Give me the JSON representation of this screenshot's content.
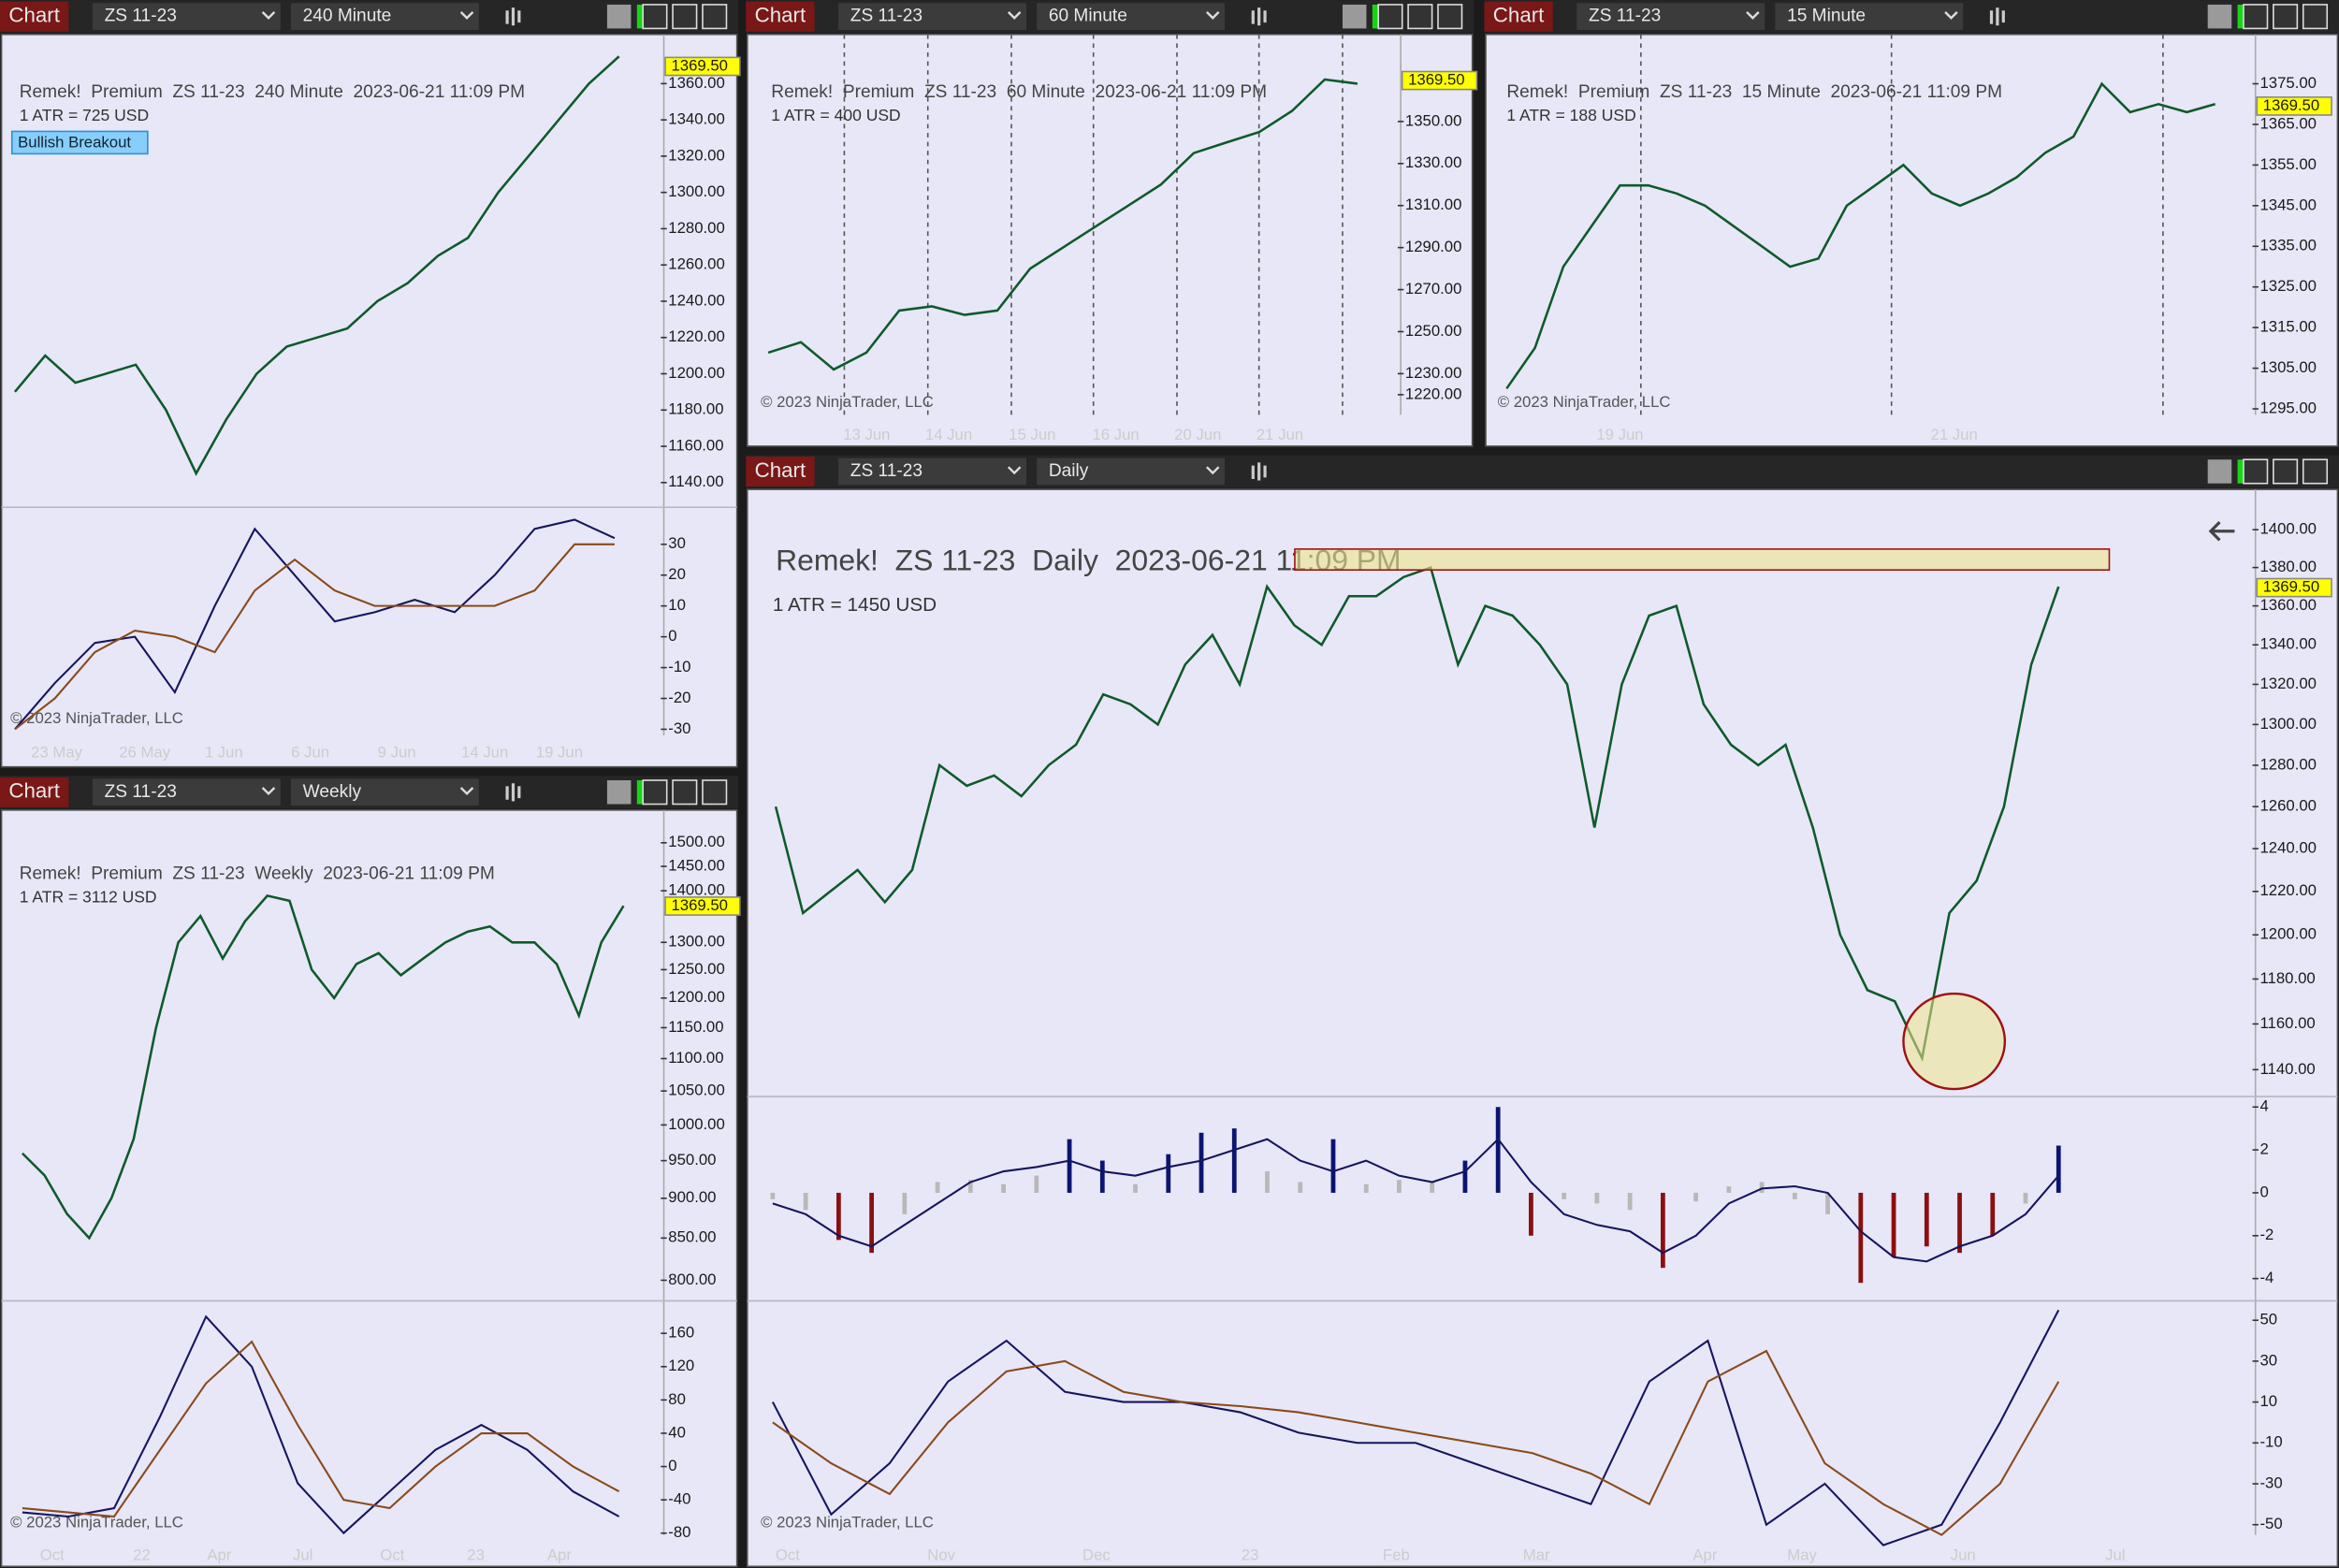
{
  "windows": [
    {
      "header": {
        "button": "Chart",
        "instrument": "ZS 11-23",
        "interval": "240 Minute"
      },
      "chart": {
        "type": "price",
        "title": "Remek!  Premium  ZS 11-23  240 Minute  2023-06-21 11:09 PM",
        "atr": "1 ATR = 725 USD",
        "badge": "Bullish Breakout",
        "last_price": {
          "value": 1369.5,
          "label": "1369.50"
        },
        "copyright": "© 2023 NinjaTrader, LLC",
        "log_scale": false,
        "ylim": [
          1128,
          1383
        ],
        "yticks": [
          {
            "value": 1140,
            "label": "1140.00"
          },
          {
            "value": 1160,
            "label": "1160.00"
          },
          {
            "value": 1180,
            "label": "1180.00"
          },
          {
            "value": 1200,
            "label": "1200.00"
          },
          {
            "value": 1220,
            "label": "1220.00"
          },
          {
            "value": 1240,
            "label": "1240.00"
          },
          {
            "value": 1260,
            "label": "1260.00"
          },
          {
            "value": 1280,
            "label": "1280.00"
          },
          {
            "value": 1300,
            "label": "1300.00"
          },
          {
            "value": 1320,
            "label": "1320.00"
          },
          {
            "value": 1340,
            "label": "1340.00"
          },
          {
            "value": 1360,
            "label": "1360.00"
          }
        ],
        "xticks": [
          "23 May",
          "26 May",
          "1 Jun",
          "6 Jun",
          "9 Jun",
          "14 Jun",
          "19 Jun"
        ],
        "price": {
          "color": "#0e5a2a",
          "values": [
            1190,
            1210,
            1195,
            1200,
            1205,
            1180,
            1145,
            1175,
            1200,
            1215,
            1220,
            1225,
            1240,
            1250,
            1265,
            1275,
            1300,
            1320,
            1340,
            1360,
            1375
          ]
        },
        "osc": {
          "ylim": [
            -33,
            42
          ],
          "yticks": [
            30,
            20,
            10,
            0,
            -10,
            -20,
            -30
          ],
          "series": [
            {
              "color": "#15155e",
              "values": [
                -30,
                -15,
                -2,
                0,
                -18,
                10,
                35,
                20,
                5,
                8,
                12,
                8,
                20,
                35,
                38,
                32
              ]
            },
            {
              "color": "#8a4a1c",
              "values": [
                -30,
                -20,
                -5,
                2,
                0,
                -5,
                15,
                25,
                15,
                10,
                10,
                10,
                10,
                15,
                30,
                30
              ]
            }
          ]
        }
      }
    },
    {
      "header": {
        "button": "Chart",
        "instrument": "ZS 11-23",
        "interval": "60 Minute"
      },
      "chart": {
        "type": "price",
        "title": "Remek!  Premium  ZS 11-23  60 Minute  2023-06-21 11:09 PM",
        "atr": "1 ATR = 400 USD",
        "last_price": {
          "value": 1369.5,
          "label": "1369.50"
        },
        "copyright": "© 2023 NinjaTrader, LLC",
        "log_scale": false,
        "ylim": [
          1209,
          1390
        ],
        "yticks": [
          {
            "value": 1220,
            "label": "1220.00"
          },
          {
            "value": 1230,
            "label": "1230.00"
          },
          {
            "value": 1250,
            "label": "1250.00"
          },
          {
            "value": 1270,
            "label": "1270.00"
          },
          {
            "value": 1290,
            "label": "1290.00"
          },
          {
            "value": 1310,
            "label": "1310.00"
          },
          {
            "value": 1330,
            "label": "1330.00"
          },
          {
            "value": 1350,
            "label": "1350.00"
          }
        ],
        "xticks": [
          "13 Jun",
          "14 Jun",
          "15 Jun",
          "16 Jun",
          "20 Jun",
          "21 Jun"
        ],
        "price": {
          "color": "#0e5a2a",
          "values": [
            1240,
            1245,
            1232,
            1240,
            1260,
            1262,
            1258,
            1260,
            1280,
            1290,
            1300,
            1310,
            1320,
            1335,
            1340,
            1345,
            1355,
            1370,
            1368
          ]
        }
      }
    },
    {
      "header": {
        "button": "Chart",
        "instrument": "ZS 11-23",
        "interval": "15 Minute"
      },
      "chart": {
        "type": "price",
        "title": "Remek!  Premium  ZS 11-23  15 Minute  2023-06-21 11:09 PM",
        "atr": "1 ATR = 188 USD",
        "last_price": {
          "value": 1369.5,
          "label": "1369.50"
        },
        "copyright": "© 2023 NinjaTrader, LLC",
        "log_scale": false,
        "ylim": [
          1292.8,
          1386.4
        ],
        "yticks": [
          {
            "value": 1295,
            "label": "1295.00"
          },
          {
            "value": 1305,
            "label": "1305.00"
          },
          {
            "value": 1315,
            "label": "1315.00"
          },
          {
            "value": 1325,
            "label": "1325.00"
          },
          {
            "value": 1335,
            "label": "1335.00"
          },
          {
            "value": 1345,
            "label": "1345.00"
          },
          {
            "value": 1355,
            "label": "1355.00"
          },
          {
            "value": 1365,
            "label": "1365.00"
          },
          {
            "value": 1375,
            "label": "1375.00"
          }
        ],
        "xticks": [
          "19 Jun",
          "21 Jun"
        ],
        "price": {
          "color": "#0e5a2a",
          "values": [
            1300,
            1310,
            1330,
            1340,
            1350,
            1350,
            1348,
            1345,
            1340,
            1335,
            1330,
            1332,
            1345,
            1350,
            1355,
            1348,
            1345,
            1348,
            1352,
            1358,
            1362,
            1375,
            1368,
            1370,
            1368,
            1370
          ]
        }
      }
    },
    {
      "header": {
        "button": "Chart",
        "instrument": "ZS 11-23",
        "interval": "Weekly"
      },
      "chart": {
        "type": "price",
        "title": "Remek!  Premium  ZS 11-23  Weekly  2023-06-21 11:09 PM",
        "atr": "1 ATR = 3112 USD",
        "last_price": {
          "value": 1369.5,
          "label": "1369.50"
        },
        "copyright": "© 2023 NinjaTrader, LLC",
        "log_scale": true,
        "ylim": [
          780,
          1542
        ],
        "yticks": [
          {
            "value": 800,
            "label": "800.00"
          },
          {
            "value": 850,
            "label": "850.00"
          },
          {
            "value": 900,
            "label": "900.00"
          },
          {
            "value": 950,
            "label": "950.00"
          },
          {
            "value": 1000,
            "label": "1000.00"
          },
          {
            "value": 1050,
            "label": "1050.00"
          },
          {
            "value": 1100,
            "label": "1100.00"
          },
          {
            "value": 1150,
            "label": "1150.00"
          },
          {
            "value": 1200,
            "label": "1200.00"
          },
          {
            "value": 1250,
            "label": "1250.00"
          },
          {
            "value": 1300,
            "label": "1300.00"
          },
          {
            "value": 1400,
            "label": "1400.00"
          },
          {
            "value": 1450,
            "label": "1450.00"
          },
          {
            "value": 1500,
            "label": "1500.00"
          }
        ],
        "xticks": [
          "Oct",
          "22",
          "Apr",
          "Jul",
          "Oct",
          "23",
          "Apr"
        ],
        "price": {
          "color": "#0e5a2a",
          "values": [
            960,
            930,
            880,
            850,
            900,
            980,
            1150,
            1300,
            1350,
            1270,
            1340,
            1390,
            1380,
            1250,
            1200,
            1260,
            1280,
            1240,
            1270,
            1300,
            1320,
            1330,
            1300,
            1300,
            1260,
            1170,
            1300,
            1370
          ]
        },
        "osc": {
          "ylim": [
            -93,
            199
          ],
          "yticks": [
            160,
            120,
            80,
            40,
            0,
            -40,
            -80
          ],
          "series": [
            {
              "color": "#15155e",
              "values": [
                -55,
                -60,
                -50,
                60,
                180,
                120,
                -20,
                -80,
                -30,
                20,
                50,
                20,
                -30,
                -60
              ]
            },
            {
              "color": "#8a4a1c",
              "values": [
                -50,
                -55,
                -60,
                20,
                100,
                150,
                50,
                -40,
                -50,
                0,
                40,
                40,
                0,
                -30
              ]
            }
          ]
        }
      }
    },
    {
      "header": {
        "button": "Chart",
        "instrument": "ZS 11-23",
        "interval": "Daily"
      },
      "chart": {
        "type": "price",
        "title": "Remek!  ZS 11-23  Daily  2023-06-21 11:09 PM",
        "atr": "1 ATR = 1450 USD",
        "last_price": {
          "value": 1369.5,
          "label": "1369.50"
        },
        "copyright": "© 2023 NinjaTrader, LLC",
        "log_scale": true,
        "ylim": [
          1129.7,
          1414.4
        ],
        "yticks": [
          {
            "value": 1140,
            "label": "1140.00"
          },
          {
            "value": 1160,
            "label": "1160.00"
          },
          {
            "value": 1180,
            "label": "1180.00"
          },
          {
            "value": 1200,
            "label": "1200.00"
          },
          {
            "value": 1220,
            "label": "1220.00"
          },
          {
            "value": 1240,
            "label": "1240.00"
          },
          {
            "value": 1260,
            "label": "1260.00"
          },
          {
            "value": 1280,
            "label": "1280.00"
          },
          {
            "value": 1300,
            "label": "1300.00"
          },
          {
            "value": 1320,
            "label": "1320.00"
          },
          {
            "value": 1340,
            "label": "1340.00"
          },
          {
            "value": 1360,
            "label": "1360.00"
          },
          {
            "value": 1380,
            "label": "1380.00"
          },
          {
            "value": 1400,
            "label": "1400.00"
          }
        ],
        "xticks": [
          "Oct",
          "Nov",
          "Dec",
          "23",
          "Feb",
          "Mar",
          "Apr",
          "May",
          "Jun",
          "Jul"
        ],
        "price": {
          "color": "#0e5a2a",
          "values": [
            1260,
            1210,
            1220,
            1230,
            1215,
            1230,
            1280,
            1270,
            1275,
            1265,
            1280,
            1290,
            1315,
            1310,
            1300,
            1330,
            1345,
            1320,
            1370,
            1350,
            1340,
            1365,
            1365,
            1375,
            1380,
            1330,
            1360,
            1355,
            1340,
            1320,
            1250,
            1320,
            1355,
            1360,
            1310,
            1290,
            1280,
            1290,
            1250,
            1200,
            1175,
            1170,
            1145,
            1210,
            1225,
            1260,
            1330,
            1370
          ]
        },
        "macd": {
          "ylim": [
            -4.9,
            4.49
          ],
          "yticks": [
            4,
            2,
            0,
            -2,
            -4
          ],
          "histogram": {
            "colors": {
              "up": "#0b1470",
              "down": "#8a1010",
              "neutral": "#b8b8b8"
            },
            "values": [
              -0.3,
              -0.8,
              -2.2,
              -2.8,
              -1.0,
              0.5,
              0.6,
              0.4,
              0.8,
              2.5,
              1.5,
              0.4,
              1.8,
              2.8,
              3.0,
              1.0,
              0.5,
              2.5,
              0.4,
              0.6,
              0.5,
              1.5,
              4.0,
              -2.0,
              -0.3,
              -0.5,
              -0.8,
              -3.5,
              -0.4,
              0.3,
              0.5,
              -0.3,
              -1.0,
              -4.2,
              -3.0,
              -2.5,
              -2.8,
              -2.0,
              -0.5,
              2.2
            ]
          },
          "line": {
            "color": "#15155e",
            "values": [
              -0.5,
              -1,
              -2,
              -2.5,
              -1.5,
              -0.5,
              0.5,
              1.0,
              1.2,
              1.5,
              1.0,
              0.8,
              1.2,
              1.5,
              2.0,
              2.5,
              1.5,
              1.0,
              1.5,
              0.8,
              0.5,
              1.0,
              2.5,
              0.5,
              -1.0,
              -1.5,
              -1.8,
              -2.8,
              -2.0,
              -0.5,
              0.2,
              0.3,
              0,
              -1.8,
              -3.0,
              -3.2,
              -2.5,
              -2.0,
              -1.0,
              0.8
            ]
          }
        },
        "osc": {
          "ylim": [
            -55.8,
            59.5
          ],
          "yticks": [
            50,
            30,
            10,
            -10,
            -30,
            -50
          ],
          "series": [
            {
              "color": "#15155e",
              "values": [
                10,
                -45,
                -20,
                20,
                40,
                15,
                10,
                10,
                5,
                -5,
                -10,
                -10,
                -20,
                -30,
                -40,
                20,
                40,
                -50,
                -30,
                -60,
                -50,
                0,
                55
              ]
            },
            {
              "color": "#8a4a1c",
              "values": [
                0,
                -20,
                -35,
                0,
                25,
                30,
                15,
                10,
                8,
                5,
                0,
                -5,
                -10,
                -15,
                -25,
                -40,
                20,
                35,
                -20,
                -40,
                -55,
                -30,
                20
              ]
            }
          ]
        }
      }
    }
  ]
}
